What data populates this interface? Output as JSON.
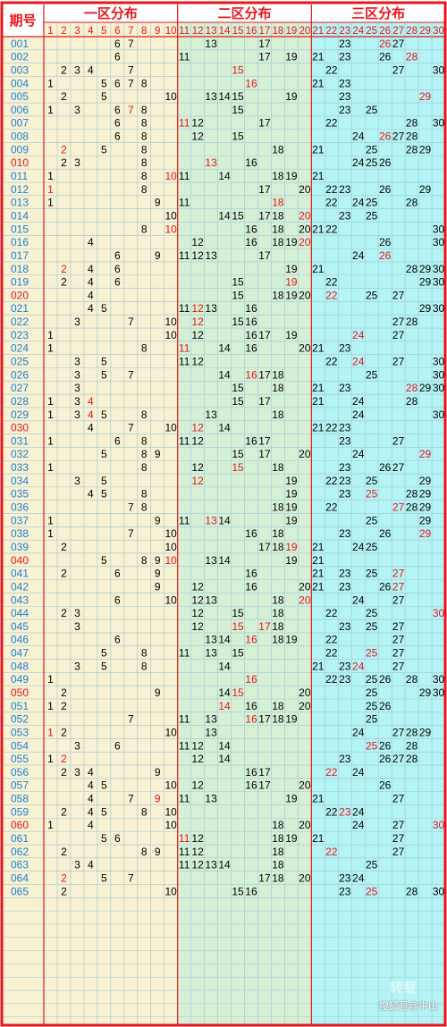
{
  "header": {
    "period_label": "期号",
    "zones": [
      "一区分布",
      "二区分布",
      "三区分布"
    ]
  },
  "column_numbers": [
    1,
    2,
    3,
    4,
    5,
    6,
    7,
    8,
    9,
    10,
    11,
    12,
    13,
    14,
    15,
    16,
    17,
    18,
    19,
    20,
    21,
    22,
    23,
    24,
    25,
    26,
    27,
    28,
    29,
    30
  ],
  "colors": {
    "border": "#e8151b",
    "zone1_bg": "#f8f1d2",
    "zone2_bg": "#d6f0d6",
    "zone3_bg": "#b4f4f4",
    "period_bg": "#f8f1d2",
    "number_normal": "#000000",
    "number_highlight": "#e8151b",
    "period_blue": "#1a7fd8",
    "period_red": "#e8151b",
    "grid_line": "#9ec6d8"
  },
  "watermark": "搜狐号@牛山",
  "watermark_faint": "转载",
  "chart_data": {
    "type": "table",
    "rows": [
      {
        "period": "001",
        "nums": [
          6,
          7,
          13,
          17,
          23,
          26,
          27
        ],
        "red": [
          26
        ]
      },
      {
        "period": "002",
        "nums": [
          6,
          11,
          17,
          19,
          21,
          23,
          26,
          28
        ],
        "red": [
          28
        ]
      },
      {
        "period": "003",
        "nums": [
          2,
          3,
          4,
          7,
          15,
          22,
          27,
          30
        ],
        "red": [
          15
        ]
      },
      {
        "period": "004",
        "nums": [
          1,
          5,
          6,
          7,
          8,
          16,
          21,
          23
        ],
        "red": [
          16
        ]
      },
      {
        "period": "005",
        "nums": [
          2,
          5,
          10,
          13,
          14,
          15,
          19,
          23,
          29
        ],
        "red": [
          29
        ]
      },
      {
        "period": "006",
        "nums": [
          1,
          3,
          6,
          7,
          8,
          15,
          23,
          25
        ],
        "red": [
          7
        ]
      },
      {
        "period": "007",
        "nums": [
          6,
          8,
          11,
          12,
          17,
          22,
          28,
          30
        ],
        "red": [
          11
        ]
      },
      {
        "period": "008",
        "nums": [
          6,
          8,
          12,
          15,
          24,
          26,
          27,
          28
        ],
        "red": [
          26
        ]
      },
      {
        "period": "009",
        "nums": [
          2,
          5,
          8,
          18,
          21,
          25,
          28,
          29
        ],
        "red": [
          2
        ]
      },
      {
        "period": "010",
        "nums": [
          2,
          3,
          8,
          13,
          16,
          24,
          25,
          26
        ],
        "red": [
          13
        ]
      },
      {
        "period": "011",
        "nums": [
          1,
          8,
          10,
          11,
          14,
          18,
          19,
          21
        ],
        "red": [
          10
        ]
      },
      {
        "period": "012",
        "nums": [
          1,
          8,
          17,
          20,
          22,
          23,
          26,
          29
        ],
        "red": [
          1
        ]
      },
      {
        "period": "013",
        "nums": [
          1,
          9,
          11,
          18,
          22,
          24,
          25,
          28
        ],
        "red": [
          18
        ]
      },
      {
        "period": "014",
        "nums": [
          10,
          14,
          15,
          17,
          18,
          20,
          23,
          25
        ],
        "red": [
          20
        ]
      },
      {
        "period": "015",
        "nums": [
          8,
          10,
          16,
          18,
          20,
          21,
          22,
          30
        ],
        "red": [
          10
        ]
      },
      {
        "period": "016",
        "nums": [
          4,
          12,
          16,
          18,
          19,
          20,
          26,
          30
        ],
        "red": [
          20
        ]
      },
      {
        "period": "017",
        "nums": [
          6,
          9,
          11,
          12,
          13,
          17,
          24,
          26
        ],
        "red": [
          26
        ]
      },
      {
        "period": "018",
        "nums": [
          2,
          4,
          6,
          19,
          21,
          28,
          29,
          30
        ],
        "red": [
          2
        ]
      },
      {
        "period": "019",
        "nums": [
          2,
          4,
          6,
          15,
          19,
          22,
          29,
          30
        ],
        "red": [
          19
        ]
      },
      {
        "period": "020",
        "nums": [
          4,
          15,
          18,
          19,
          20,
          22,
          25,
          27
        ],
        "red": [
          22
        ]
      },
      {
        "period": "021",
        "nums": [
          4,
          5,
          11,
          12,
          13,
          16,
          29,
          30
        ],
        "red": [
          12
        ]
      },
      {
        "period": "022",
        "nums": [
          3,
          7,
          10,
          12,
          15,
          16,
          27,
          28
        ],
        "red": [
          12
        ]
      },
      {
        "period": "023",
        "nums": [
          1,
          10,
          12,
          16,
          17,
          19,
          24,
          27
        ],
        "red": [
          24
        ]
      },
      {
        "period": "024",
        "nums": [
          1,
          8,
          11,
          14,
          16,
          20,
          21,
          23
        ],
        "red": [
          11
        ]
      },
      {
        "period": "025",
        "nums": [
          3,
          5,
          11,
          12,
          22,
          24,
          27,
          30
        ],
        "red": [
          24
        ]
      },
      {
        "period": "026",
        "nums": [
          3,
          5,
          7,
          14,
          16,
          17,
          18,
          25,
          30
        ],
        "red": [
          16
        ]
      },
      {
        "period": "027",
        "nums": [
          3,
          15,
          18,
          21,
          23,
          28,
          29,
          30
        ],
        "red": [
          28
        ]
      },
      {
        "period": "028",
        "nums": [
          1,
          3,
          4,
          15,
          17,
          21,
          24,
          28
        ],
        "red": [
          4
        ]
      },
      {
        "period": "029",
        "nums": [
          1,
          3,
          4,
          5,
          8,
          13,
          18,
          24,
          30
        ],
        "red": [
          4
        ]
      },
      {
        "period": "030",
        "nums": [
          4,
          7,
          10,
          12,
          14,
          21,
          22,
          23
        ],
        "red": [
          12
        ]
      },
      {
        "period": "031",
        "nums": [
          1,
          6,
          8,
          11,
          12,
          16,
          17,
          23,
          27
        ],
        "red": []
      },
      {
        "period": "032",
        "nums": [
          5,
          8,
          9,
          15,
          17,
          20,
          24,
          29
        ],
        "red": [
          29
        ]
      },
      {
        "period": "033",
        "nums": [
          1,
          8,
          12,
          15,
          18,
          23,
          26,
          27
        ],
        "red": [
          15
        ]
      },
      {
        "period": "034",
        "nums": [
          3,
          5,
          12,
          19,
          22,
          23,
          25,
          29
        ],
        "red": [
          12
        ]
      },
      {
        "period": "035",
        "nums": [
          4,
          5,
          8,
          19,
          23,
          25,
          28,
          29
        ],
        "red": [
          25
        ]
      },
      {
        "period": "036",
        "nums": [
          7,
          8,
          18,
          19,
          22,
          27,
          28,
          29
        ],
        "red": [
          27
        ]
      },
      {
        "period": "037",
        "nums": [
          1,
          9,
          11,
          13,
          14,
          19,
          25,
          29
        ],
        "red": [
          13
        ]
      },
      {
        "period": "038",
        "nums": [
          1,
          7,
          10,
          16,
          18,
          23,
          26,
          29
        ],
        "red": [
          29
        ]
      },
      {
        "period": "039",
        "nums": [
          2,
          10,
          17,
          18,
          19,
          21,
          24,
          25
        ],
        "red": [
          19
        ]
      },
      {
        "period": "040",
        "nums": [
          5,
          8,
          9,
          10,
          13,
          14,
          19,
          21
        ],
        "red": [
          10
        ]
      },
      {
        "period": "041",
        "nums": [
          2,
          6,
          9,
          16,
          21,
          23,
          25,
          27
        ],
        "red": [
          27
        ]
      },
      {
        "period": "042",
        "nums": [
          9,
          12,
          16,
          20,
          21,
          23,
          26,
          27
        ],
        "red": [
          27
        ]
      },
      {
        "period": "043",
        "nums": [
          6,
          10,
          12,
          13,
          18,
          20,
          24,
          27
        ],
        "red": [
          20
        ]
      },
      {
        "period": "044",
        "nums": [
          2,
          3,
          12,
          15,
          18,
          22,
          25,
          30
        ],
        "red": [
          30
        ]
      },
      {
        "period": "045",
        "nums": [
          3,
          12,
          15,
          17,
          18,
          23,
          25,
          27
        ],
        "red": [
          15,
          17
        ]
      },
      {
        "period": "046",
        "nums": [
          6,
          13,
          14,
          16,
          18,
          19,
          22,
          27
        ],
        "red": [
          16
        ]
      },
      {
        "period": "047",
        "nums": [
          5,
          8,
          11,
          13,
          15,
          22,
          25,
          27
        ],
        "red": [
          25
        ]
      },
      {
        "period": "048",
        "nums": [
          3,
          5,
          8,
          14,
          21,
          23,
          24,
          27
        ],
        "red": [
          24
        ]
      },
      {
        "period": "049",
        "nums": [
          1,
          16,
          22,
          23,
          25,
          26,
          28,
          30
        ],
        "red": [
          16
        ]
      },
      {
        "period": "050",
        "nums": [
          2,
          9,
          14,
          15,
          20,
          25,
          29,
          30
        ],
        "red": [
          15
        ]
      },
      {
        "period": "051",
        "nums": [
          1,
          2,
          14,
          16,
          18,
          20,
          25,
          26
        ],
        "red": [
          14
        ]
      },
      {
        "period": "052",
        "nums": [
          7,
          11,
          13,
          16,
          17,
          18,
          19,
          25
        ],
        "red": [
          16
        ]
      },
      {
        "period": "053",
        "nums": [
          1,
          2,
          10,
          13,
          24,
          27,
          28,
          29
        ],
        "red": [
          1
        ]
      },
      {
        "period": "054",
        "nums": [
          3,
          6,
          11,
          12,
          14,
          25,
          26,
          28
        ],
        "red": [
          25
        ]
      },
      {
        "period": "055",
        "nums": [
          1,
          2,
          12,
          14,
          23,
          26,
          27,
          28
        ],
        "red": [
          2
        ]
      },
      {
        "period": "056",
        "nums": [
          2,
          3,
          4,
          9,
          16,
          17,
          22,
          24
        ],
        "red": [
          22
        ]
      },
      {
        "period": "057",
        "nums": [
          4,
          5,
          10,
          12,
          16,
          17,
          20,
          26
        ],
        "red": []
      },
      {
        "period": "058",
        "nums": [
          4,
          7,
          9,
          11,
          13,
          19,
          21,
          27
        ],
        "red": [
          9
        ]
      },
      {
        "period": "059",
        "nums": [
          2,
          4,
          5,
          8,
          10,
          22,
          23,
          24
        ],
        "red": [
          23
        ]
      },
      {
        "period": "060",
        "nums": [
          1,
          4,
          10,
          18,
          20,
          24,
          27,
          30
        ],
        "red": [
          30
        ]
      },
      {
        "period": "061",
        "nums": [
          5,
          6,
          11,
          12,
          18,
          19,
          21,
          27
        ],
        "red": [
          11
        ]
      },
      {
        "period": "062",
        "nums": [
          2,
          8,
          9,
          11,
          12,
          18,
          22,
          27
        ],
        "red": [
          22
        ]
      },
      {
        "period": "063",
        "nums": [
          3,
          4,
          11,
          12,
          13,
          14,
          18,
          25
        ],
        "red": []
      },
      {
        "period": "064",
        "nums": [
          2,
          5,
          7,
          17,
          18,
          20,
          23,
          24
        ],
        "red": [
          2
        ]
      },
      {
        "period": "065",
        "nums": [
          2,
          10,
          15,
          16,
          23,
          25,
          28,
          30
        ],
        "red": [
          25
        ]
      }
    ],
    "red_periods": [
      "010",
      "020",
      "030",
      "040",
      "050",
      "060"
    ]
  }
}
